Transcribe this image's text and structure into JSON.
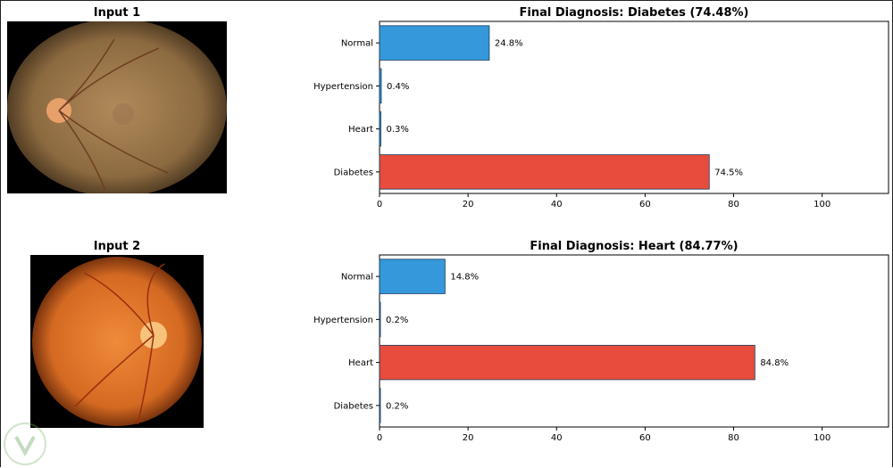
{
  "panels": [
    {
      "input_title": "Input 1",
      "chart_title": "Final Diagnosis: Diabetes (74.48%)"
    },
    {
      "input_title": "Input 2",
      "chart_title": "Final Diagnosis: Heart (84.77%)"
    }
  ],
  "colors": {
    "normal_bar": "#3498db",
    "predicted_bar": "#e74c3c",
    "axis": "#000000"
  },
  "chart_data": [
    {
      "type": "bar",
      "orientation": "horizontal",
      "title": "Final Diagnosis: Diabetes (74.48%)",
      "categories": [
        "Normal",
        "Hypertension",
        "Heart",
        "Diabetes"
      ],
      "values": [
        24.8,
        0.4,
        0.3,
        74.5
      ],
      "labels": [
        "24.8%",
        "0.4%",
        "0.3%",
        "74.5%"
      ],
      "xlim": [
        0,
        115
      ],
      "xticks": [
        0,
        20,
        40,
        60,
        80,
        100
      ],
      "highlight": "Diabetes",
      "grid": false
    },
    {
      "type": "bar",
      "orientation": "horizontal",
      "title": "Final Diagnosis: Heart (84.77%)",
      "categories": [
        "Normal",
        "Hypertension",
        "Heart",
        "Diabetes"
      ],
      "values": [
        14.8,
        0.2,
        84.8,
        0.2
      ],
      "labels": [
        "14.8%",
        "0.2%",
        "84.8%",
        "0.2%"
      ],
      "xlim": [
        0,
        115
      ],
      "xticks": [
        0,
        20,
        40,
        60,
        80,
        100
      ],
      "highlight": "Heart",
      "grid": false
    }
  ]
}
